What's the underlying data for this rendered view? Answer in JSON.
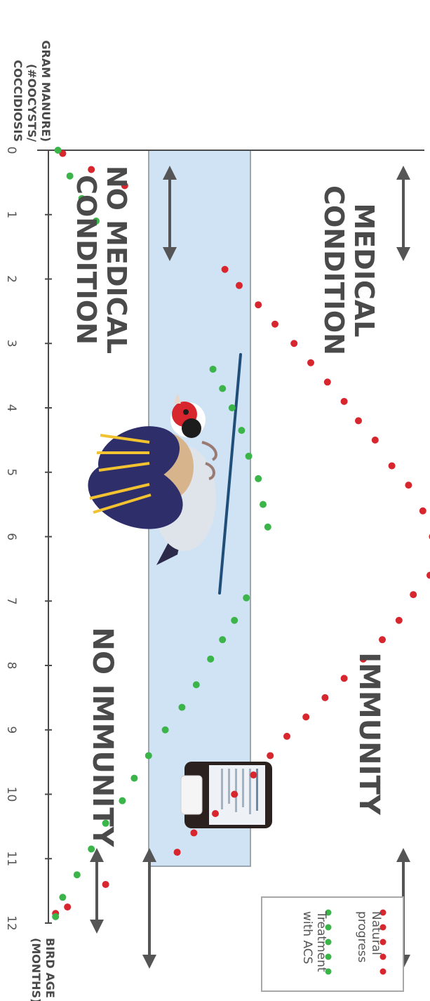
{
  "chart_data": {
    "type": "scatter",
    "title": "",
    "xlabel": "BIRD AGE (MONTHS)",
    "ylabel": "COCCIDIOSIS (#OOCYSTS/ GRAM MANURE)",
    "ylabel_lines": [
      "COCCIDIOSIS",
      "(#OOCYSTS/",
      "GRAM MANURE)"
    ],
    "xlabel_lines": [
      "BIRD AGE",
      "(MONTHS)"
    ],
    "x_ticks": [
      "0",
      "1",
      "2",
      "3",
      "4",
      "5",
      "6",
      "7",
      "8",
      "9",
      "10",
      "11",
      "12"
    ],
    "xlim": [
      0,
      12
    ],
    "grid": false,
    "series": [
      {
        "name": "Natural progress",
        "color": "#d7262d",
        "x": [
          0.05,
          0.3,
          0.55,
          1.85,
          2.1,
          2.4,
          2.7,
          3.0,
          3.3,
          3.6,
          3.9,
          4.2,
          4.5,
          4.9,
          5.2,
          5.6,
          6.0,
          6.3,
          6.6,
          6.9,
          7.3,
          7.6,
          7.9,
          8.2,
          8.5,
          8.8,
          9.1,
          9.4,
          9.7,
          10.0,
          10.3,
          10.6,
          10.9,
          11.4,
          11.75,
          11.85
        ],
        "y": [
          0.06,
          0.18,
          0.32,
          0.74,
          0.8,
          0.88,
          0.95,
          1.03,
          1.1,
          1.17,
          1.24,
          1.3,
          1.37,
          1.44,
          1.51,
          1.57,
          1.61,
          1.62,
          1.6,
          1.53,
          1.47,
          1.4,
          1.32,
          1.24,
          1.16,
          1.08,
          1.0,
          0.93,
          0.86,
          0.78,
          0.7,
          0.61,
          0.54,
          0.24,
          0.08,
          0.03
        ]
      },
      {
        "name": "Treatment with ACS",
        "color": "#3bb44a",
        "x": [
          0.0,
          0.4,
          0.75,
          1.1,
          3.4,
          3.7,
          4.0,
          4.35,
          4.75,
          5.1,
          5.5,
          5.85,
          6.95,
          7.3,
          7.6,
          7.9,
          8.3,
          8.65,
          9.0,
          9.4,
          9.75,
          10.1,
          10.45,
          10.85,
          11.25,
          11.6,
          11.9
        ],
        "y": [
          0.04,
          0.09,
          0.14,
          0.2,
          0.69,
          0.73,
          0.77,
          0.81,
          0.84,
          0.88,
          0.9,
          0.92,
          0.83,
          0.78,
          0.73,
          0.68,
          0.62,
          0.56,
          0.49,
          0.42,
          0.36,
          0.31,
          0.24,
          0.18,
          0.12,
          0.06,
          0.03
        ]
      }
    ],
    "legend": {
      "position": "bottom-right",
      "items": [
        {
          "label_lines": [
            "Natural",
            "progress"
          ],
          "color": "#d7262d"
        },
        {
          "label_lines": [
            "Treatment",
            "with ACS"
          ],
          "color": "#3bb44a"
        }
      ]
    },
    "annotations": {
      "medical_condition": [
        "MEDICAL",
        "CONDITION"
      ],
      "no_medical_condition": [
        "NO MEDICAL",
        "CONDITION"
      ],
      "immunity": "IMMUNITY",
      "no_immunity": "NO IMMUNITY"
    },
    "colors": {
      "band": "#cfe3f4",
      "band_border": "#9aa6b0",
      "arrow": "#555555",
      "axis": "#4a4a4a"
    }
  }
}
